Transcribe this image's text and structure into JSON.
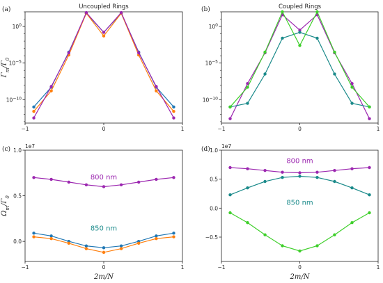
{
  "chart_data": [
    {
      "id": "a",
      "panel_label": "(a)",
      "type": "line",
      "title": "Uncoupled Rings",
      "ylabel": "Γm/Γ0",
      "xlabel": "",
      "yscale": "log",
      "xlim": [
        -1.0,
        1.0
      ],
      "ylim_exp": [
        -13.2,
        2.0
      ],
      "x_ticks": [
        -1,
        0,
        1
      ],
      "x_tick_labels": [
        "−1",
        "0",
        "1"
      ],
      "y_ticks_exp": [
        -10,
        -5,
        0
      ],
      "y_tick_labels": [
        "10^−10",
        "10^−5",
        "10^0"
      ],
      "x": [
        -0.889,
        -0.667,
        -0.444,
        -0.222,
        0.0,
        0.222,
        0.444,
        0.667,
        0.889
      ],
      "series": [
        {
          "color": "#1f77b4",
          "log10_values": [
            -11.0,
            -8.3,
            -3.5,
            1.8,
            -0.8,
            1.8,
            -3.5,
            -8.3,
            -11.0
          ]
        },
        {
          "color": "#ff7f0e",
          "log10_values": [
            -11.6,
            -8.8,
            -3.9,
            1.8,
            -1.3,
            1.8,
            -3.9,
            -8.8,
            -11.6
          ]
        },
        {
          "color": "#9c27b0",
          "log10_values": [
            -12.5,
            -8.2,
            -3.6,
            1.9,
            -0.8,
            1.9,
            -3.6,
            -8.2,
            -12.5
          ]
        }
      ]
    },
    {
      "id": "b",
      "panel_label": "(b)",
      "type": "line",
      "title": "Coupled Rings",
      "ylabel": "",
      "xlabel": "",
      "yscale": "log",
      "xlim": [
        -1.0,
        1.0
      ],
      "ylim_exp": [
        -13.2,
        2.0
      ],
      "x_ticks": [
        -1,
        0,
        1
      ],
      "x_tick_labels": [
        "−1",
        "0",
        "1"
      ],
      "y_ticks_exp": [
        -10,
        -5,
        0
      ],
      "y_tick_labels": [
        "10^−10",
        "10^−5",
        "10^0"
      ],
      "x": [
        -0.889,
        -0.667,
        -0.444,
        -0.222,
        0.0,
        0.222,
        0.444,
        0.667,
        0.889
      ],
      "series": [
        {
          "color": "#9c27b0",
          "log10_values": [
            -12.6,
            -7.8,
            -3.6,
            1.6,
            -0.5,
            1.6,
            -3.6,
            -7.8,
            -12.6
          ]
        },
        {
          "color": "#1a8a8a",
          "log10_values": [
            -11.0,
            -10.5,
            -6.5,
            -1.6,
            -0.8,
            -1.6,
            -6.5,
            -10.5,
            -11.0
          ]
        },
        {
          "color": "#3ecf2a",
          "log10_values": [
            -11.0,
            -8.3,
            -3.5,
            2.0,
            -2.6,
            2.0,
            -3.5,
            -8.3,
            -11.0
          ]
        }
      ]
    },
    {
      "id": "c",
      "panel_label": "(c)",
      "type": "line",
      "title": "",
      "ylabel": "Ωm/Γ0",
      "xlabel": "2m/N",
      "yscale": "linear",
      "offset_label": "1e7",
      "xlim": [
        -1.0,
        1.0
      ],
      "ylim": [
        -2.2,
        10.0
      ],
      "x_ticks": [
        -1,
        0,
        1
      ],
      "x_tick_labels": [
        "−1",
        "0",
        "1"
      ],
      "y_ticks": [
        0.0,
        0.5,
        1.0
      ],
      "y_tick_values": [
        0,
        5,
        10
      ],
      "y_tick_labels": [
        "0.0",
        "0.5",
        "1.0"
      ],
      "x": [
        -0.889,
        -0.667,
        -0.444,
        -0.222,
        0.0,
        0.222,
        0.444,
        0.667,
        0.889
      ],
      "annotations": [
        {
          "text": "800 nm",
          "color": "#9c27b0",
          "x": 0.0,
          "y": 6.8
        },
        {
          "text": "850 nm",
          "color": "#1a8a8a",
          "x": 0.0,
          "y": 1.2
        }
      ],
      "series": [
        {
          "color": "#9c27b0",
          "values": [
            7.0,
            6.8,
            6.5,
            6.2,
            6.0,
            6.2,
            6.5,
            6.8,
            7.0
          ]
        },
        {
          "color": "#1f77b4",
          "values": [
            0.9,
            0.6,
            0.0,
            -0.5,
            -0.7,
            -0.5,
            0.0,
            0.6,
            0.9
          ]
        },
        {
          "color": "#ff7f0e",
          "values": [
            0.5,
            0.3,
            -0.2,
            -0.8,
            -1.2,
            -0.8,
            -0.2,
            0.3,
            0.5
          ]
        }
      ]
    },
    {
      "id": "d",
      "panel_label": "(d)",
      "type": "line",
      "title": "",
      "ylabel": "",
      "xlabel": "2m/N",
      "yscale": "linear",
      "offset_label": "1e7",
      "xlim": [
        -1.0,
        1.0
      ],
      "ylim": [
        -9.2,
        10.0
      ],
      "x_ticks": [
        -1,
        0,
        1
      ],
      "x_tick_labels": [
        "−1",
        "0",
        "1"
      ],
      "y_ticks": [
        -0.5,
        0.0,
        0.5,
        1.0
      ],
      "y_tick_values": [
        -5,
        0,
        5,
        10
      ],
      "y_tick_labels": [
        "−0.5",
        "0.0",
        "0.5",
        "1.0"
      ],
      "x": [
        -0.889,
        -0.667,
        -0.444,
        -0.222,
        0.0,
        0.222,
        0.444,
        0.667,
        0.889
      ],
      "annotations": [
        {
          "text": "800 nm",
          "color": "#9c27b0",
          "x": 0.0,
          "y": 7.8
        },
        {
          "text": "850 nm",
          "color": "#1a8a8a",
          "x": 0.0,
          "y": 0.6
        }
      ],
      "series": [
        {
          "color": "#9c27b0",
          "values": [
            7.0,
            6.8,
            6.5,
            6.2,
            6.1,
            6.2,
            6.5,
            6.8,
            7.0
          ]
        },
        {
          "color": "#1a8a8a",
          "values": [
            2.3,
            3.5,
            4.6,
            5.3,
            5.5,
            5.3,
            4.6,
            3.5,
            2.3
          ]
        },
        {
          "color": "#3ecf2a",
          "values": [
            -0.8,
            -2.5,
            -4.6,
            -6.5,
            -7.4,
            -6.5,
            -4.6,
            -2.5,
            -0.8
          ]
        }
      ]
    }
  ]
}
